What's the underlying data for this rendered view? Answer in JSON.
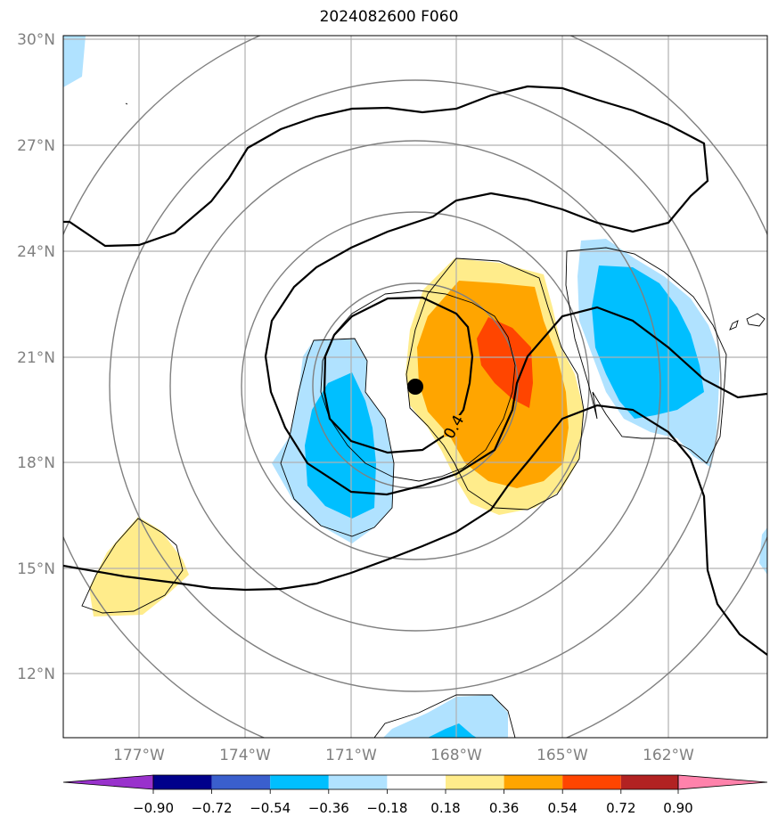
{
  "title": "2024082600 F060",
  "lat_labels": [
    "30°N",
    "27°N",
    "24°N",
    "21°N",
    "18°N",
    "15°N",
    "12°N"
  ],
  "lon_labels": [
    "177°W",
    "174°W",
    "171°W",
    "168°W",
    "165°W",
    "162°W"
  ],
  "contour_label": "0.4",
  "colorbar": {
    "colors": [
      "#9932CC",
      "#00008B",
      "#3A5FCD",
      "#00BFFF",
      "#B0E2FF",
      "#FFFFFF",
      "#FFEC8B",
      "#FFA500",
      "#FF4500",
      "#B22222",
      "#FF82AB"
    ],
    "tick_labels": [
      "−0.90",
      "−0.72",
      "−0.54",
      "−0.36",
      "−0.18",
      "0.18",
      "0.36",
      "0.54",
      "0.72",
      "0.90"
    ]
  }
}
